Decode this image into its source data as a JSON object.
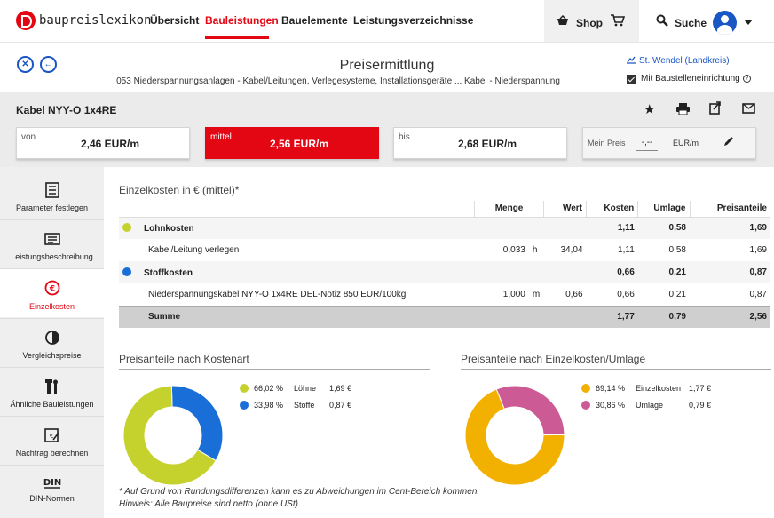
{
  "nav": {
    "logo_text": "baupreislexikon",
    "items": [
      "Übersicht",
      "Bauleistungen",
      "Bauelemente",
      "Leistungsverzeichnisse"
    ],
    "active_item": "Bauleistungen",
    "shop_label": "Shop",
    "search_label": "Suche"
  },
  "header": {
    "title": "Preisermittlung",
    "breadcrumb": "053 Niederspannungsanlagen - Kabel/Leitungen, Verlegesysteme, Installationsgeräte ... Kabel - Niederspannung",
    "region_link": "St. Wendel (Landkreis)",
    "construction_site_label": "Mit Baustelleneinrichtung",
    "construction_site_checked": true
  },
  "item": {
    "name": "Kabel NYY-O 1x4RE",
    "prices": {
      "von_label": "von",
      "von_value": "2,46 EUR/m",
      "mittel_label": "mittel",
      "mittel_value": "2,56 EUR/m",
      "bis_label": "bis",
      "bis_value": "2,68 EUR/m"
    },
    "my_price_label": "Mein Preis",
    "my_price_value": "-,--",
    "my_price_unit": "EUR/m"
  },
  "sidebar": {
    "items": [
      {
        "label": "Parameter festlegen",
        "icon": "parameter-icon"
      },
      {
        "label": "Leistungsbeschreibung",
        "icon": "description-icon"
      },
      {
        "label": "Einzelkosten",
        "icon": "euro-icon"
      },
      {
        "label": "Vergleichspreise",
        "icon": "half-circle-icon"
      },
      {
        "label": "Ähnliche Bauleistungen",
        "icon": "tools-icon"
      },
      {
        "label": "Nachtrag berechnen",
        "icon": "calculator-icon"
      },
      {
        "label": "DIN-Normen",
        "icon": "din-icon"
      }
    ],
    "active": "Einzelkosten"
  },
  "costs": {
    "title": "Einzelkosten in € (mittel)*",
    "columns": [
      "Menge",
      "Wert",
      "Kosten",
      "Umlage",
      "Preisanteile"
    ],
    "lohn": {
      "name": "Lohnkosten",
      "kosten": "1,11",
      "umlage": "0,58",
      "anteil": "1,69",
      "color": "#c5d22e"
    },
    "lohn_row": {
      "name": "Kabel/Leitung verlegen",
      "menge": "0,033",
      "einheit": "h",
      "wert": "34,04",
      "kosten": "1,11",
      "umlage": "0,58",
      "anteil": "1,69"
    },
    "stoff": {
      "name": "Stoffkosten",
      "kosten": "0,66",
      "umlage": "0,21",
      "anteil": "0,87",
      "color": "#1a6ed8"
    },
    "stoff_row": {
      "name": "Niederspannungskabel NYY-O 1x4RE DEL-Notiz 850 EUR/100kg",
      "menge": "1,000",
      "einheit": "m",
      "wert": "0,66",
      "kosten": "0,66",
      "umlage": "0,21",
      "anteil": "0,87"
    },
    "sum": {
      "name": "Summe",
      "kosten": "1,77",
      "umlage": "0,79",
      "anteil": "2,56"
    }
  },
  "chart_data": [
    {
      "type": "pie",
      "title": "Preisanteile nach Kostenart",
      "categories": [
        "Löhne",
        "Stoffe"
      ],
      "values": [
        66.02,
        33.98
      ],
      "labels_pct": [
        "66,02 %",
        "33,98 %"
      ],
      "amounts": [
        "1,69 €",
        "0,87 €"
      ],
      "colors": [
        "#c5d22e",
        "#1a6ed8"
      ]
    },
    {
      "type": "pie",
      "title": "Preisanteile nach Einzelkosten/Umlage",
      "categories": [
        "Einzelkosten",
        "Umlage"
      ],
      "values": [
        69.14,
        30.86
      ],
      "labels_pct": [
        "69,14 %",
        "30,86 %"
      ],
      "amounts": [
        "1,77 €",
        "0,79 €"
      ],
      "colors": [
        "#f2b000",
        "#cc5a94"
      ]
    }
  ],
  "footnote": {
    "line1": "* Auf Grund von Rundungsdifferenzen kann es zu Abweichungen im Cent-Bereich kommen.",
    "line2": "Hinweis: Alle Baupreise sind netto (ohne USt)."
  }
}
